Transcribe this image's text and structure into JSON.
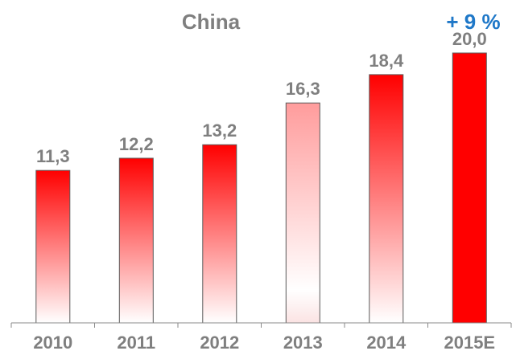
{
  "chart_data": {
    "type": "bar",
    "title": "China",
    "annotation": "+ 9 %",
    "xlabel": "",
    "ylabel": "",
    "categories": [
      "2010",
      "2011",
      "2012",
      "2013",
      "2014",
      "2015E"
    ],
    "values": [
      11.3,
      12.2,
      13.2,
      16.3,
      18.4,
      20.0
    ],
    "value_labels": [
      "11,3",
      "12,2",
      "13,2",
      "16,3",
      "18,4",
      "20,0"
    ],
    "ylim": [
      0,
      20
    ],
    "grid": false,
    "bar_color": "#ff0000",
    "forecast_bar_color": "#ff0000",
    "annotation_color": "#1f78c8",
    "text_color": "#7f7f7f"
  }
}
